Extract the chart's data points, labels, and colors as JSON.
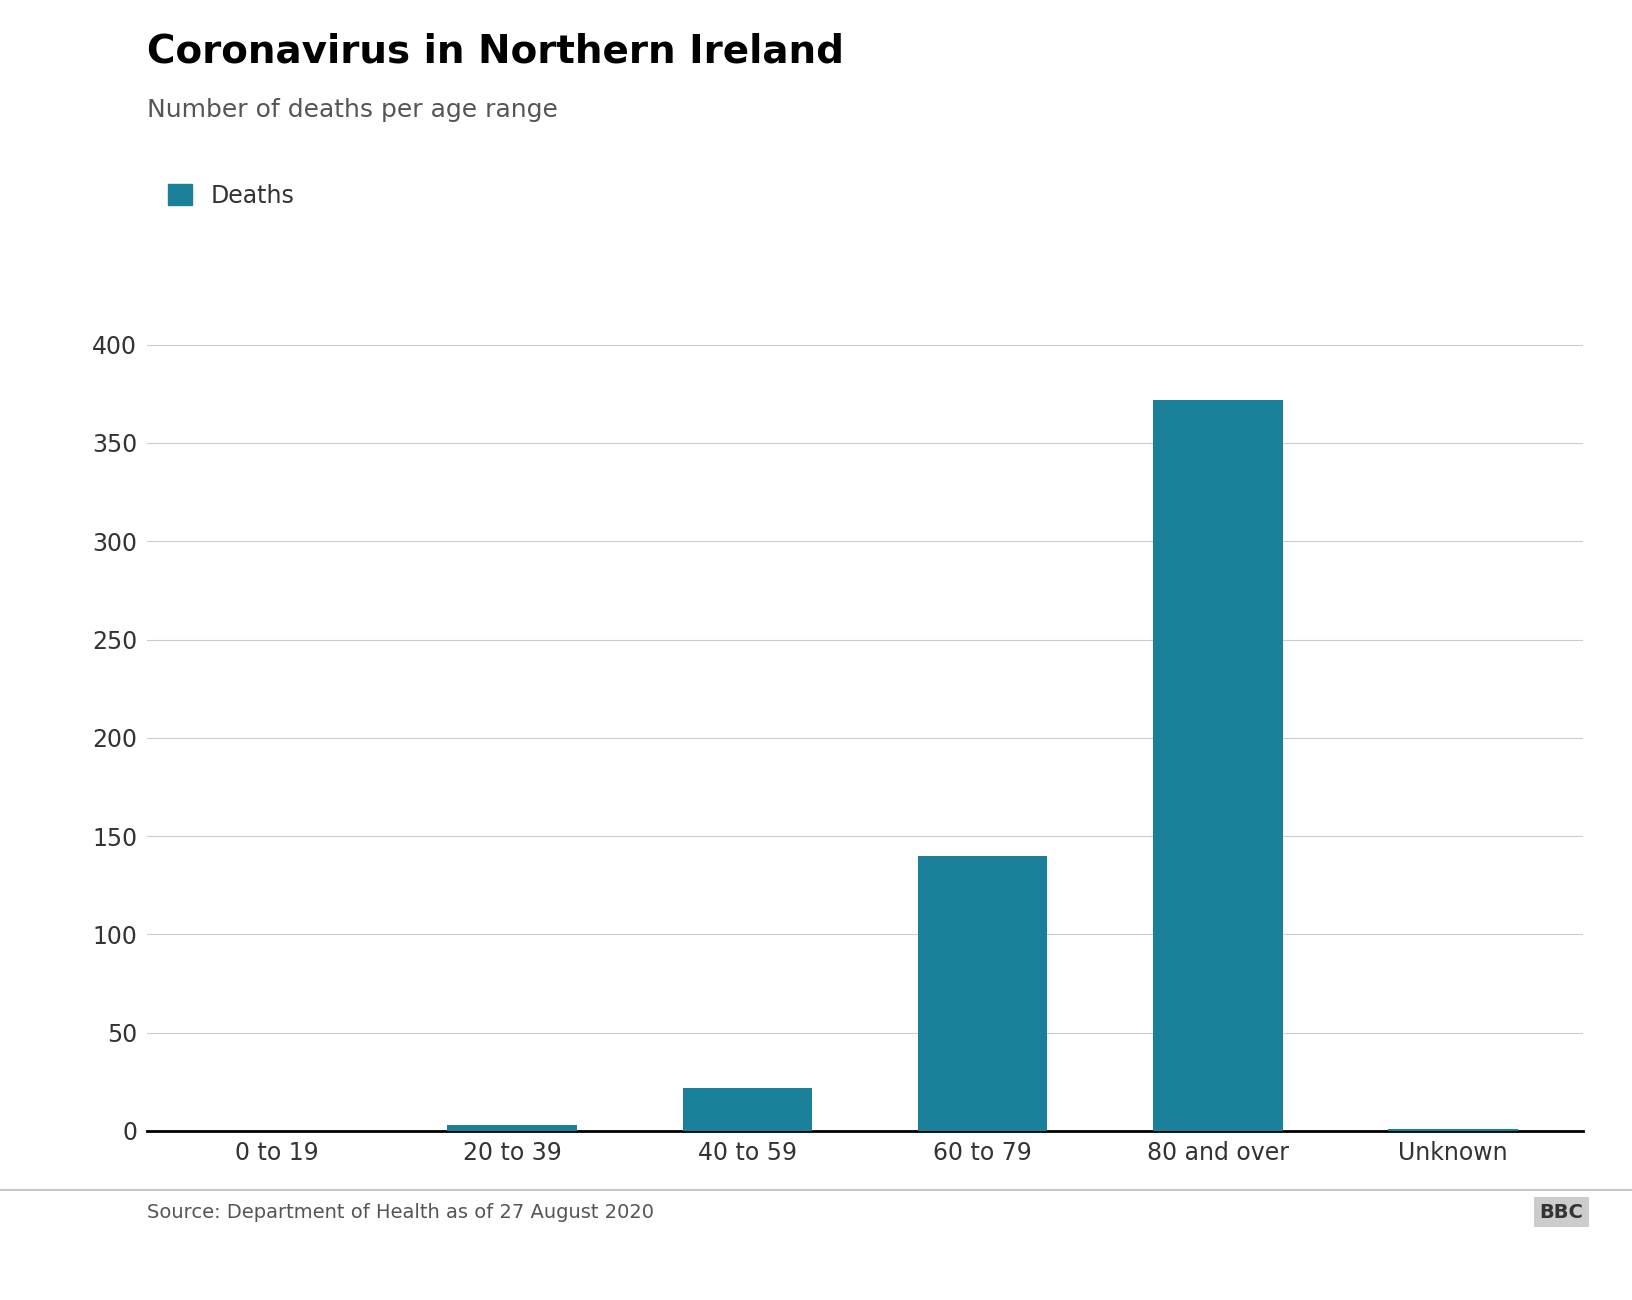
{
  "title": "Coronavirus in Northern Ireland",
  "subtitle": "Number of deaths per age range",
  "legend_label": "Deaths",
  "source": "Source: Department of Health as of 27 August 2020",
  "categories": [
    "0 to 19",
    "20 to 39",
    "40 to 59",
    "60 to 79",
    "80 and over",
    "Unknown"
  ],
  "values": [
    0,
    3,
    22,
    140,
    372,
    1
  ],
  "bar_color": "#1a7f99",
  "background_color": "#ffffff",
  "title_fontsize": 28,
  "subtitle_fontsize": 18,
  "tick_fontsize": 17,
  "legend_fontsize": 17,
  "source_fontsize": 14,
  "ylim": [
    0,
    410
  ],
  "yticks": [
    0,
    50,
    100,
    150,
    200,
    250,
    300,
    350,
    400
  ],
  "bar_width": 0.55
}
